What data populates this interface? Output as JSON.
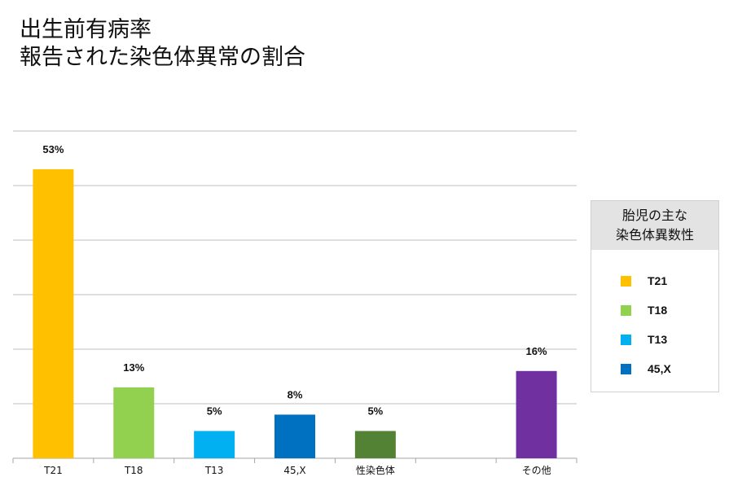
{
  "title": {
    "line1": "出生前有病率",
    "line2": "報告された染色体異常の割合"
  },
  "legend": {
    "title_line1": "胎児の主な",
    "title_line2": "染色体異数性",
    "items": [
      {
        "label": "T21",
        "color": "#FFC000"
      },
      {
        "label": "T18",
        "color": "#92D050"
      },
      {
        "label": "T13",
        "color": "#00B0F0"
      },
      {
        "label": "45,X",
        "color": "#0070C0"
      }
    ]
  },
  "chart_data": {
    "type": "bar",
    "categories": [
      "T21",
      "T18",
      "T13",
      "45,X",
      "性染色体",
      "",
      "その他"
    ],
    "values": [
      53,
      13,
      5,
      8,
      5,
      null,
      16
    ],
    "data_labels": [
      "53%",
      "13%",
      "5%",
      "8%",
      "5%",
      "",
      "16%"
    ],
    "colors": [
      "#FFC000",
      "#92D050",
      "#00B0F0",
      "#0070C0",
      "#548235",
      "",
      "#7030A0"
    ],
    "ylim": [
      0,
      60
    ],
    "y_gridline_step": 10,
    "y_tick_labels_shown": false,
    "grid": true,
    "legend_position": "right"
  }
}
